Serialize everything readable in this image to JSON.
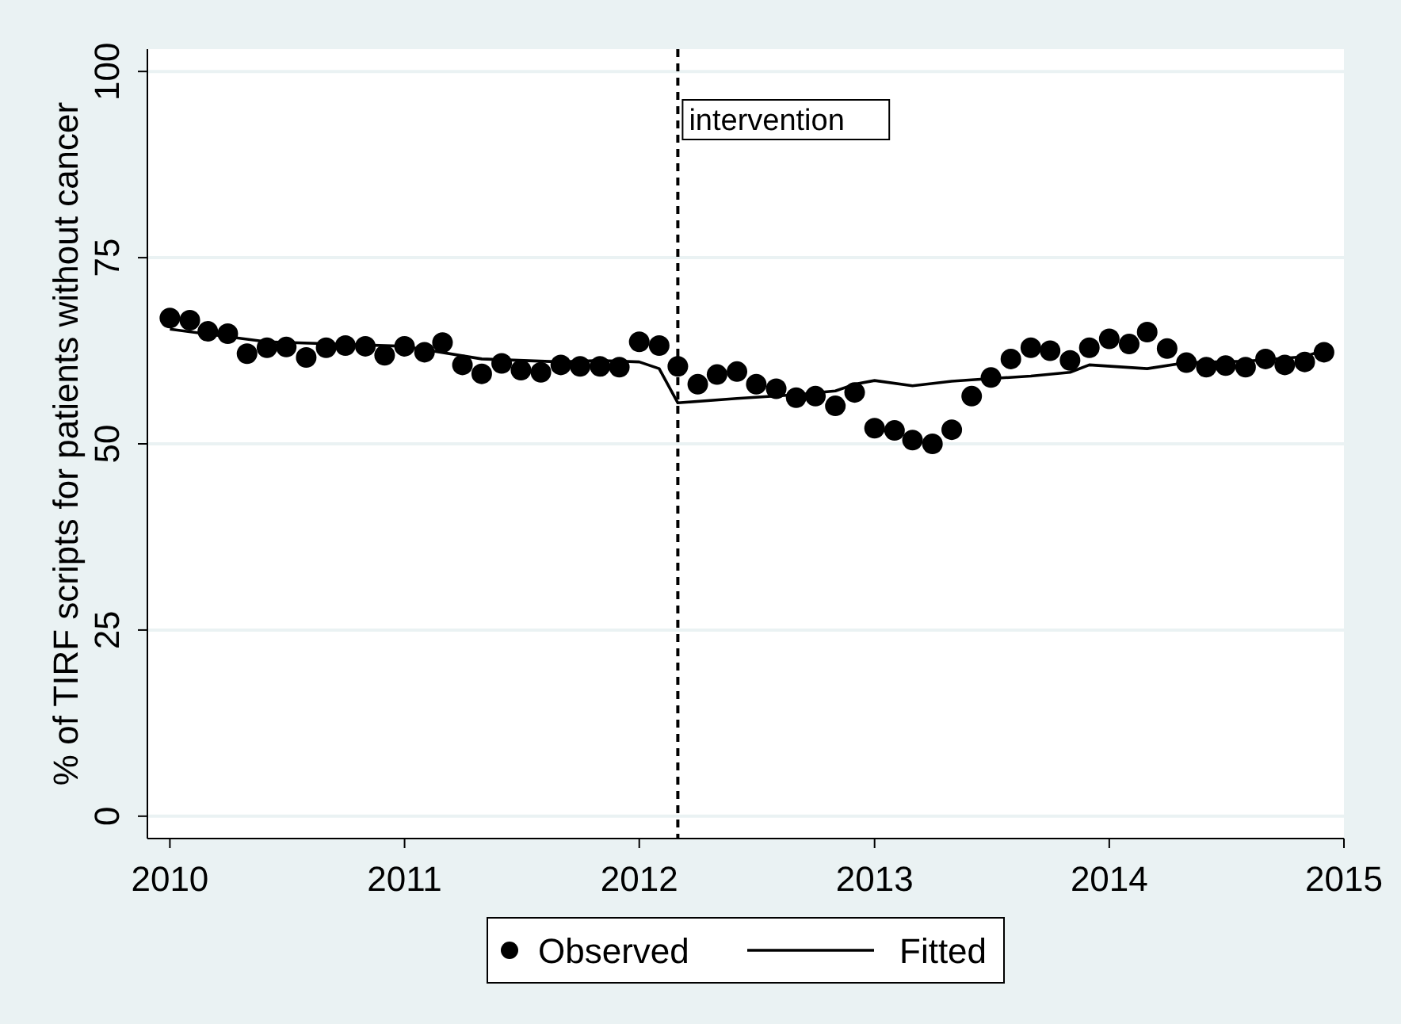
{
  "chart_data": {
    "type": "scatter",
    "ylabel": "% of TIRF scripts for patients without cancer",
    "xlim": [
      "2009-11-27",
      "2015-01-01"
    ],
    "xticks": [
      "2010",
      "2011",
      "2012",
      "2013",
      "2014",
      "2015"
    ],
    "ylim": [
      -3,
      103
    ],
    "yticks": [
      0,
      25,
      50,
      75,
      100
    ],
    "grid": "y",
    "legend": "bottom",
    "x": [
      "2010-01",
      "2010-02",
      "2010-03",
      "2010-04",
      "2010-05",
      "2010-06",
      "2010-07",
      "2010-08",
      "2010-09",
      "2010-10",
      "2010-11",
      "2010-12",
      "2011-01",
      "2011-02",
      "2011-03",
      "2011-04",
      "2011-05",
      "2011-06",
      "2011-07",
      "2011-08",
      "2011-09",
      "2011-10",
      "2011-11",
      "2011-12",
      "2012-01",
      "2012-02",
      "2012-03",
      "2012-04",
      "2012-05",
      "2012-06",
      "2012-07",
      "2012-08",
      "2012-09",
      "2012-10",
      "2012-11",
      "2012-12",
      "2013-01",
      "2013-02",
      "2013-03",
      "2013-04",
      "2013-05",
      "2013-06",
      "2013-07",
      "2013-08",
      "2013-09",
      "2013-10",
      "2013-11",
      "2013-12",
      "2014-01",
      "2014-02",
      "2014-03",
      "2014-04",
      "2014-05",
      "2014-06",
      "2014-07",
      "2014-08",
      "2014-09",
      "2014-10",
      "2014-11",
      "2014-12"
    ],
    "series": [
      {
        "name": "Observed",
        "marker": "circle",
        "color": "#000000",
        "values": [
          66.9,
          66.6,
          65.1,
          64.8,
          62.1,
          62.9,
          63.0,
          61.6,
          62.9,
          63.2,
          63.1,
          61.9,
          63.1,
          62.3,
          63.6,
          60.6,
          59.4,
          60.8,
          59.9,
          59.6,
          60.6,
          60.4,
          60.4,
          60.3,
          63.7,
          63.2,
          60.4,
          58.0,
          59.3,
          59.7,
          58.0,
          57.4,
          56.2,
          56.4,
          55.1,
          56.9,
          52.1,
          51.8,
          50.5,
          50.0,
          51.9,
          56.4,
          58.9,
          61.4,
          62.9,
          62.5,
          61.2,
          62.9,
          64.1,
          63.4,
          65.0,
          62.8,
          60.9,
          60.3,
          60.5,
          60.3,
          61.4,
          60.6,
          61.0,
          62.3
        ]
      },
      {
        "name": "Fitted",
        "type": "line",
        "marker": "none",
        "line_style": "solid",
        "color": "#000000",
        "x": [
          "2010-01",
          "2010-06",
          "2011-01",
          "2011-05",
          "2011-09",
          "2011-11",
          "2012-01",
          "2012-02",
          "2012-03",
          "2012-06",
          "2012-09",
          "2012-11",
          "2012-12",
          "2013-01",
          "2013-03",
          "2013-05",
          "2013-06",
          "2013-09",
          "2013-11",
          "2013-12",
          "2014-03",
          "2014-05",
          "2014-08",
          "2014-11",
          "2014-12"
        ],
        "values": [
          65.4,
          63.7,
          63.1,
          61.4,
          61.0,
          61.2,
          61.0,
          60.1,
          55.5,
          56.1,
          56.6,
          57.1,
          58.0,
          58.5,
          57.8,
          58.4,
          58.6,
          59.1,
          59.6,
          60.6,
          60.1,
          60.9,
          61.1,
          61.7,
          62.6
        ]
      }
    ],
    "ref_lines": [
      {
        "axis": "x",
        "value": "2012-03",
        "label": "intervention",
        "color": "#000000",
        "line_style": "dashed"
      }
    ]
  }
}
